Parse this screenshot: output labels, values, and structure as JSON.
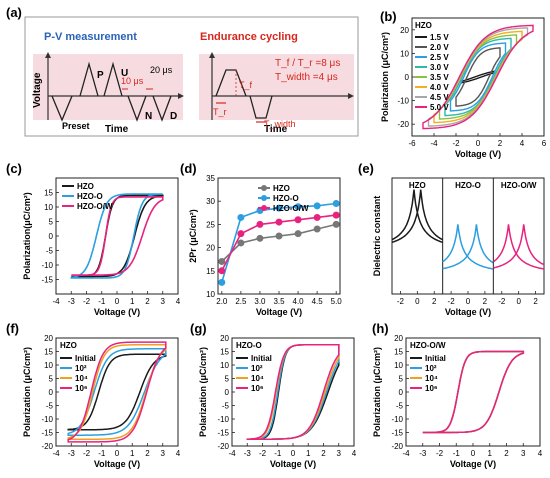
{
  "colors": {
    "black": "#1a1a1a",
    "blue": "#2b9fe0",
    "pink": "#e8237f",
    "gray": "#777777",
    "orange": "#f0a020",
    "red": "#d9261c",
    "darkblue": "#2a63b8",
    "pv": [
      "#1a1a1a",
      "#555555",
      "#2b9fe0",
      "#30b8a8",
      "#8ac43f",
      "#f0b020",
      "#a7a7a7",
      "#e8237f"
    ]
  },
  "panel_a": {
    "label": "(a)",
    "left_title": "P-V measurement",
    "right_title": "Endurance cycling",
    "ylabel": "Voltage",
    "xlabel": "Time",
    "pulse_labels": [
      "P",
      "U",
      "N",
      "D",
      "Preset"
    ],
    "t10": "10 μs",
    "t20": "20 μs",
    "tf": "T_f",
    "tr": "T_r",
    "twidth": "T_width",
    "note1": "T_f / T_r =8 μs",
    "note2": "T_width =4 μs"
  },
  "chart_data": [
    {
      "id": "b",
      "label": "(b)",
      "type": "line",
      "title": "HZO",
      "xlabel": "Voltage (V)",
      "ylabel": "Polarization (μC/cm²)",
      "xlim": [
        -6,
        6
      ],
      "ylim": [
        -25,
        25
      ],
      "xticks": [
        -6,
        -4,
        -2,
        0,
        2,
        4,
        6
      ],
      "yticks": [
        -20,
        -10,
        0,
        10,
        20
      ],
      "legend": "top-left",
      "series": [
        {
          "name": "1.5 V",
          "vmax": 1.5,
          "pr": 0.5,
          "ps": 3.5,
          "vc": 0.3
        },
        {
          "name": "2.0 V",
          "vmax": 2.0,
          "pr": 8.5,
          "ps": 12.5,
          "vc": 1.0
        },
        {
          "name": "2.5 V",
          "vmax": 2.5,
          "pr": 10.5,
          "ps": 14.5,
          "vc": 1.3
        },
        {
          "name": "3.0 V",
          "vmax": 3.0,
          "pr": 11.5,
          "ps": 16.5,
          "vc": 1.45
        },
        {
          "name": "3.5 V",
          "vmax": 3.5,
          "pr": 12.0,
          "ps": 18.0,
          "vc": 1.55
        },
        {
          "name": "4.0 V",
          "vmax": 4.0,
          "pr": 12.5,
          "ps": 19.5,
          "vc": 1.6
        },
        {
          "name": "4.5 V",
          "vmax": 4.5,
          "pr": 13.0,
          "ps": 21.0,
          "vc": 1.65
        },
        {
          "name": "5.0 V",
          "vmax": 5.0,
          "pr": 13.5,
          "ps": 22.0,
          "vc": 1.7
        }
      ]
    },
    {
      "id": "c",
      "label": "(c)",
      "type": "line",
      "xlabel": "Voltage (V)",
      "ylabel": "Polarization(μC/cm²)",
      "xlim": [
        -4,
        4
      ],
      "ylim": [
        -20,
        20
      ],
      "xticks": [
        -4,
        -3,
        -2,
        -1,
        0,
        1,
        2,
        3,
        4
      ],
      "yticks": [
        -15,
        -10,
        -5,
        0,
        5,
        10,
        15
      ],
      "legend": "top-left",
      "series": [
        {
          "name": "HZO",
          "vmax": 3,
          "pr": 13.0,
          "ps": 14.0,
          "vc": 1.15,
          "vcn": -0.75
        },
        {
          "name": "HZO-O",
          "vmax": 3,
          "pr": 14.0,
          "ps": 14.5,
          "vc": 1.1,
          "vcn": -1.35
        },
        {
          "name": "HZO-O/W",
          "vmax": 3,
          "pr": 13.0,
          "ps": 13.5,
          "vc": 1.65,
          "vcn": -0.75
        }
      ]
    },
    {
      "id": "d",
      "label": "(d)",
      "type": "line",
      "xlabel": "Voltage (V)",
      "ylabel": "2Pr (μC/cm²)",
      "xlim": [
        1.9,
        5.1
      ],
      "ylim": [
        10,
        35
      ],
      "xticks": [
        2.0,
        2.5,
        3.0,
        3.5,
        4.0,
        4.5,
        5.0
      ],
      "yticks": [
        10,
        15,
        20,
        25,
        30,
        35
      ],
      "legend": "top-left",
      "x": [
        2.0,
        2.5,
        3.0,
        3.5,
        4.0,
        4.5,
        5.0
      ],
      "series": [
        {
          "name": "HZO",
          "values": [
            17,
            21,
            22,
            22.5,
            23,
            24,
            25
          ]
        },
        {
          "name": "HZO-O",
          "values": [
            12.5,
            26.5,
            28,
            28.5,
            28.8,
            29,
            29.5
          ]
        },
        {
          "name": "HZO-O/W",
          "values": [
            15,
            23,
            25,
            25.5,
            26,
            26.5,
            27
          ]
        }
      ]
    },
    {
      "id": "e",
      "label": "(e)",
      "type": "line",
      "xlabel": "Voltage (V)",
      "ylabel": "Dielectric constant",
      "xlim": [
        -3,
        3
      ],
      "xticks": [
        -2,
        0,
        2
      ],
      "panels": [
        {
          "name": "HZO",
          "peaks": [
            -0.4,
            0.4
          ],
          "base": 0.35,
          "height": 0.55
        },
        {
          "name": "HZO-O",
          "peaks": [
            -1.2,
            1.0
          ],
          "base": 0.15,
          "height": 0.45
        },
        {
          "name": "HZO-O/W",
          "peaks": [
            -1.2,
            0.6
          ],
          "base": 0.15,
          "height": 0.45
        }
      ]
    },
    {
      "id": "f",
      "label": "(f)",
      "type": "line",
      "title": "HZO",
      "xlabel": "Voltage (V)",
      "ylabel": "Polarization (μC/cm²)",
      "xlim": [
        -4,
        4
      ],
      "ylim": [
        -20,
        20
      ],
      "xticks": [
        -4,
        -3,
        -2,
        -1,
        0,
        1,
        2,
        3,
        4
      ],
      "yticks": [
        -20,
        -15,
        -10,
        -5,
        0,
        5,
        10,
        15,
        20
      ],
      "legend": "top-left",
      "series": [
        {
          "name": "Initial",
          "vmax": 3.2,
          "pr": 13.0,
          "ps": 14.0,
          "vc": 1.5,
          "vcn": -1.2
        },
        {
          "name": "10²",
          "vmax": 3.2,
          "pr": 15.0,
          "ps": 16.0,
          "vc": 1.8,
          "vcn": -1.5
        },
        {
          "name": "10⁴",
          "vmax": 3.2,
          "pr": 17.0,
          "ps": 17.5,
          "vc": 1.9,
          "vcn": -1.6
        },
        {
          "name": "10⁶",
          "vmax": 3.2,
          "pr": 18.0,
          "ps": 18.5,
          "vc": 1.95,
          "vcn": -1.7
        }
      ]
    },
    {
      "id": "g",
      "label": "(g)",
      "type": "line",
      "title": "HZO-O",
      "xlabel": "Voltage (V)",
      "ylabel": "Polarization (μC/cm²)",
      "xlim": [
        -4,
        4
      ],
      "ylim": [
        -20,
        20
      ],
      "xticks": [
        -4,
        -3,
        -2,
        -1,
        0,
        1,
        2,
        3,
        4
      ],
      "yticks": [
        -20,
        -15,
        -10,
        -5,
        0,
        5,
        10,
        15,
        20
      ],
      "legend": "top-left",
      "series": [
        {
          "name": "Initial",
          "vmax": 3,
          "pr": 17.0,
          "ps": 17.5,
          "vc": 2.3,
          "vcn": -0.95
        },
        {
          "name": "10²",
          "vmax": 3,
          "pr": 17.0,
          "ps": 17.5,
          "vc": 2.2,
          "vcn": -1.0
        },
        {
          "name": "10⁴",
          "vmax": 3,
          "pr": 17.0,
          "ps": 17.5,
          "vc": 2.1,
          "vcn": -1.1
        },
        {
          "name": "10⁶",
          "vmax": 3,
          "pr": 17.0,
          "ps": 17.5,
          "vc": 2.0,
          "vcn": -1.15
        }
      ]
    },
    {
      "id": "h",
      "label": "(h)",
      "type": "line",
      "title": "HZO-O/W",
      "xlabel": "Voltage (V)",
      "ylabel": "Polarization (μC/cm²)",
      "xlim": [
        -4,
        4
      ],
      "ylim": [
        -20,
        20
      ],
      "xticks": [
        -4,
        -3,
        -2,
        -1,
        0,
        1,
        2,
        3,
        4
      ],
      "yticks": [
        -20,
        -15,
        -10,
        -5,
        0,
        5,
        10,
        15,
        20
      ],
      "legend": "top-left",
      "series": [
        {
          "name": "Initial",
          "vmax": 3,
          "pr": 14.5,
          "ps": 15.0,
          "vc": 1.55,
          "vcn": -0.9
        },
        {
          "name": "10²",
          "vmax": 3,
          "pr": 14.5,
          "ps": 15.0,
          "vc": 1.55,
          "vcn": -0.9
        },
        {
          "name": "10⁴",
          "vmax": 3,
          "pr": 14.5,
          "ps": 15.0,
          "vc": 1.55,
          "vcn": -0.9
        },
        {
          "name": "10⁶",
          "vmax": 3,
          "pr": 14.5,
          "ps": 15.0,
          "vc": 1.55,
          "vcn": -0.9
        }
      ]
    }
  ]
}
